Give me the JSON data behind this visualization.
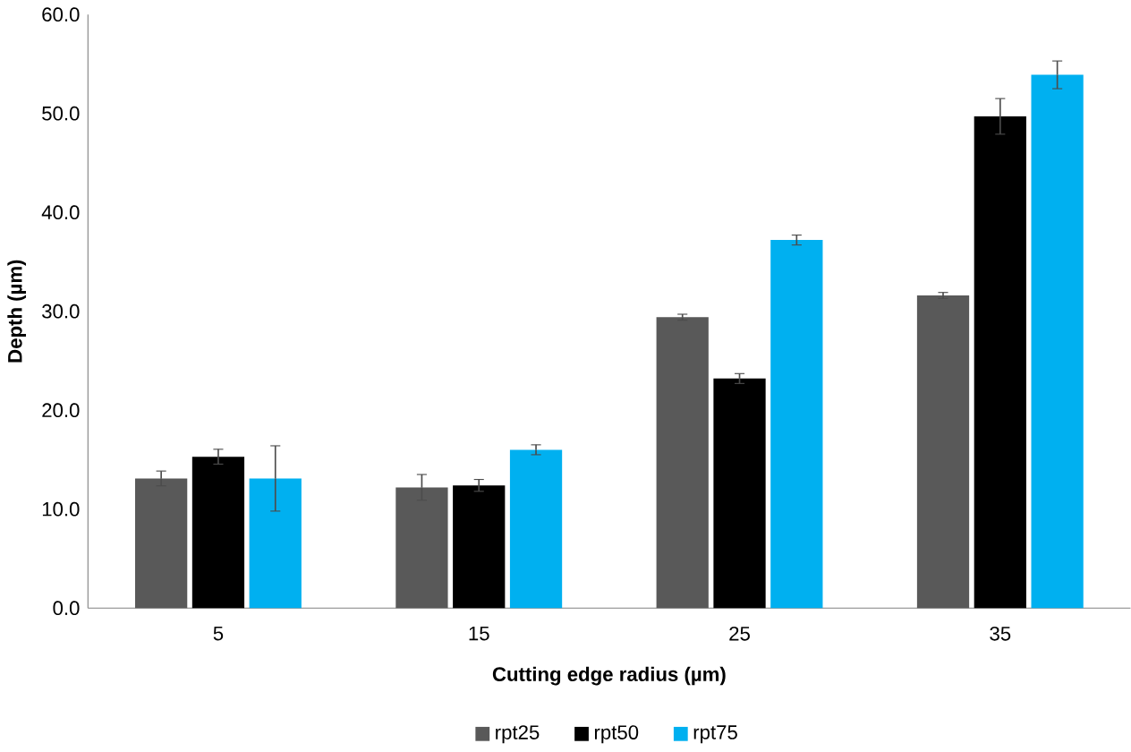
{
  "chart_data": {
    "type": "bar",
    "xlabel": "Cutting edge radius (µm)",
    "ylabel": "Depth (µm)",
    "categories": [
      "5",
      "15",
      "25",
      "35"
    ],
    "series": [
      {
        "name": "rpt25",
        "color": "#595959",
        "values": [
          13.1,
          12.2,
          29.4,
          31.6
        ],
        "errors": [
          0.75,
          1.3,
          0.3,
          0.3
        ]
      },
      {
        "name": "rpt50",
        "color": "#000000",
        "values": [
          15.3,
          12.4,
          23.2,
          49.7
        ],
        "errors": [
          0.75,
          0.6,
          0.5,
          1.8
        ]
      },
      {
        "name": "rpt75",
        "color": "#00b0f0",
        "values": [
          13.1,
          16.0,
          37.2,
          53.9
        ],
        "errors": [
          3.3,
          0.5,
          0.5,
          1.4
        ]
      }
    ],
    "ylim": [
      0,
      60
    ],
    "yticks": [
      {
        "value": 0,
        "label": "0.0"
      },
      {
        "value": 10,
        "label": "10.0"
      },
      {
        "value": 20,
        "label": "20.0"
      },
      {
        "value": 30,
        "label": "30.0"
      },
      {
        "value": 40,
        "label": "40.0"
      },
      {
        "value": 50,
        "label": "50.0"
      },
      {
        "value": 60,
        "label": "60.0"
      }
    ],
    "grid": false,
    "legend": "bottom"
  }
}
